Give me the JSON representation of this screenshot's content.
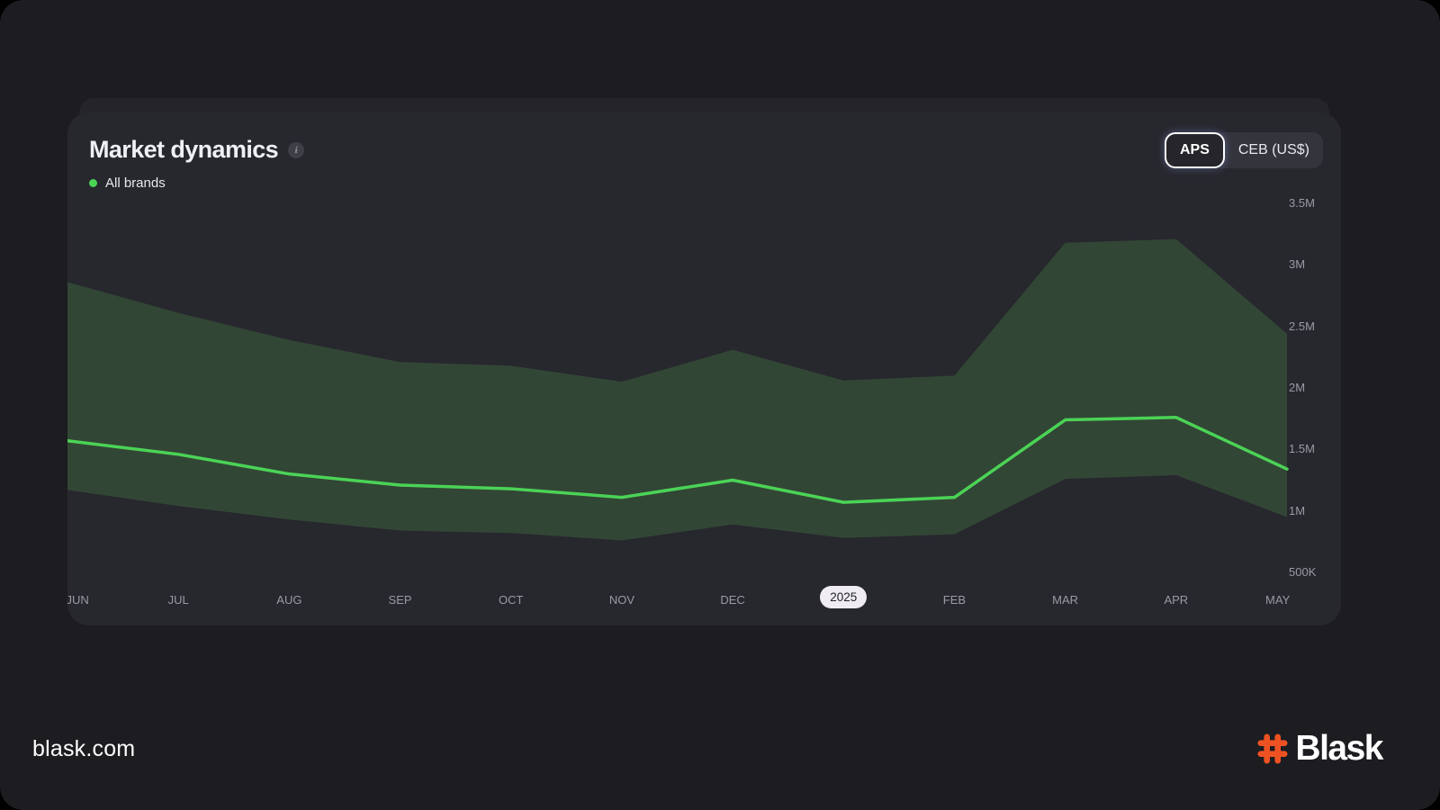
{
  "card": {
    "title": "Market dynamics",
    "info_icon": "i",
    "legend": [
      {
        "label": "All brands",
        "color": "#4bd356"
      }
    ],
    "toggle": {
      "options": [
        {
          "label": "APS",
          "selected": true
        },
        {
          "label": "CEB (US$)",
          "selected": false
        }
      ]
    }
  },
  "footer": {
    "site": "blask.com",
    "logo_text": "Blask",
    "logo_hash_color": "#ef5222"
  },
  "chart_data": {
    "type": "area",
    "title": "Market dynamics",
    "subtitle": "",
    "xlabel": "",
    "ylabel": "",
    "unit_selected": "APS",
    "grid": false,
    "legend_position": "top-left",
    "x_labels": [
      "JUN",
      "JUL",
      "AUG",
      "SEP",
      "OCT",
      "NOV",
      "DEC",
      "2025",
      "FEB",
      "MAR",
      "APR",
      "MAY"
    ],
    "highlighted_x_label": "2025",
    "highlight_pill": {
      "bg": "#efedf2",
      "text": "#232229"
    },
    "y_ticks": [
      {
        "label": "3.5M",
        "value": 3.5
      },
      {
        "label": "3M",
        "value": 3.0
      },
      {
        "label": "2.5M",
        "value": 2.5
      },
      {
        "label": "2M",
        "value": 2.0
      },
      {
        "label": "1.5M",
        "value": 1.5
      },
      {
        "label": "1M",
        "value": 1.0
      },
      {
        "label": "500K",
        "value": 0.5
      }
    ],
    "ylim_millions": [
      0.5,
      3.5
    ],
    "series": [
      {
        "name": "All brands",
        "type": "line",
        "color": "#4bd356",
        "values_millions": [
          1.57,
          1.46,
          1.3,
          1.21,
          1.18,
          1.11,
          1.25,
          1.07,
          1.11,
          1.74,
          1.76,
          1.34
        ]
      },
      {
        "name": "All brands range upper",
        "type": "area-upper",
        "color": "#324635",
        "values_millions": [
          2.86,
          2.61,
          2.39,
          2.21,
          2.18,
          2.05,
          2.31,
          2.06,
          2.1,
          3.18,
          3.21,
          2.44
        ]
      },
      {
        "name": "All brands range lower",
        "type": "area-lower",
        "color": "#324635",
        "values_millions": [
          1.17,
          1.04,
          0.93,
          0.84,
          0.82,
          0.76,
          0.89,
          0.78,
          0.81,
          1.26,
          1.29,
          0.95
        ]
      }
    ]
  }
}
